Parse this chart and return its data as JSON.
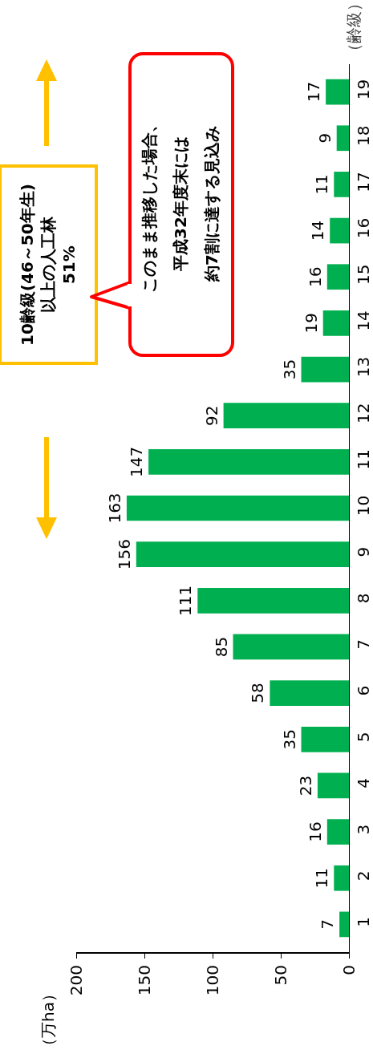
{
  "chart_data": {
    "type": "bar",
    "orientation": "horizontal",
    "categories": [
      "19",
      "18",
      "17",
      "16",
      "15",
      "14",
      "13",
      "12",
      "11",
      "10",
      "9",
      "8",
      "7",
      "6",
      "5",
      "4",
      "3",
      "2",
      "1"
    ],
    "values": [
      17,
      9,
      11,
      14,
      16,
      19,
      35,
      92,
      147,
      163,
      156,
      111,
      85,
      58,
      35,
      23,
      16,
      11,
      7
    ],
    "color": "#00b050",
    "xlim": [
      200,
      0
    ],
    "xticks": [
      0,
      50,
      100,
      150,
      200
    ],
    "grid": false,
    "legend": false,
    "data_labels": true,
    "ylabel": "（齢級）",
    "annotations": [
      "10齢級(46～50年生)\n以上の人工林\n51%",
      "このまま推移した場合、",
      "平成32年度末には",
      "約7割に達する見込み",
      "（万ha）"
    ]
  }
}
